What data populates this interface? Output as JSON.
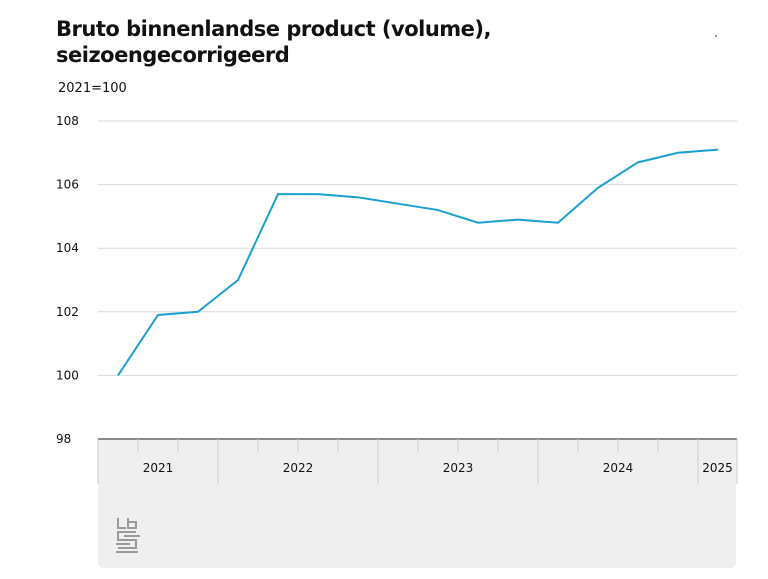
{
  "chart_data": {
    "type": "line",
    "title": "Bruto binnenlandse product (volume), seizoengecorrigeerd",
    "ylabel": "2021=100",
    "ylim": [
      98,
      108
    ],
    "yticks": [
      98,
      100,
      102,
      104,
      106,
      108
    ],
    "grid": true,
    "x": [
      "2021 Q2",
      "2021 Q3",
      "2021 Q4",
      "2022 Q1",
      "2022 Q2",
      "2022 Q3",
      "2022 Q4",
      "2023 Q1",
      "2023 Q2",
      "2023 Q3",
      "2023 Q4",
      "2024 Q1",
      "2024 Q2",
      "2024 Q3",
      "2024 Q4",
      "2025 Q1"
    ],
    "years": [
      {
        "label": "2021",
        "quarters": 3
      },
      {
        "label": "2022",
        "quarters": 4
      },
      {
        "label": "2023",
        "quarters": 4
      },
      {
        "label": "2024",
        "quarters": 4
      },
      {
        "label": "2025",
        "quarters": 1
      }
    ],
    "series": [
      {
        "values": [
          100.0,
          101.9,
          102.0,
          103.0,
          105.7,
          105.7,
          105.6,
          105.4,
          105.2,
          104.8,
          104.9,
          104.8,
          105.9,
          106.7,
          107.0,
          107.1
        ],
        "color": "#1aa0d0"
      }
    ]
  },
  "colors": {
    "line": "#1aa0d0",
    "axis_band": "#efefef",
    "grid": "#d9d9d9"
  },
  "logo_text": "cbs"
}
